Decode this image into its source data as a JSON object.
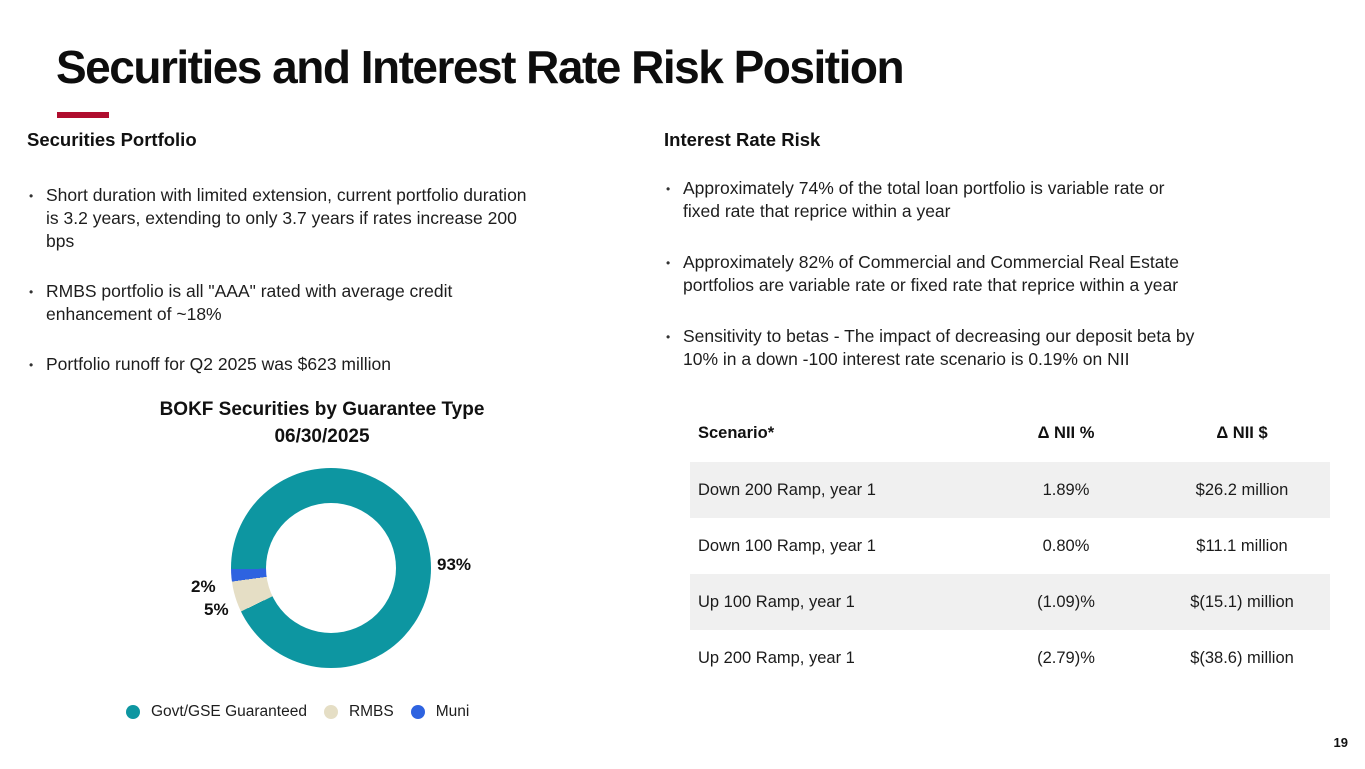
{
  "slide": {
    "title": "Securities and Interest Rate Risk Position",
    "accent_color": "#AF0D2E",
    "page_number": "19"
  },
  "left": {
    "heading": "Securities Portfolio",
    "bullets": [
      [
        "Short duration with limited extension, current portfolio duration",
        "is 3.2 years, extending to only 3.7 years if rates increase 200",
        "bps"
      ],
      [
        "RMBS portfolio is all \"AAA\" rated with average credit",
        "enhancement of  ~18%"
      ],
      [
        "Portfolio runoff for Q2 2025 was $623 million"
      ]
    ]
  },
  "right": {
    "heading": "Interest Rate Risk",
    "bullets": [
      [
        "Approximately 74% of the total loan portfolio is variable rate or",
        "fixed rate that reprice within a year"
      ],
      [
        "Approximately 82% of Commercial and Commercial Real Estate",
        "portfolios are variable rate or fixed rate that reprice within a year"
      ],
      [
        "Sensitivity to betas - The impact of decreasing our deposit beta by",
        "10% in a down -100 interest rate scenario is 0.19% on NII"
      ]
    ]
  },
  "chart": {
    "title_line1": "BOKF Securities by Guarantee Type",
    "title_line2": "06/30/2025",
    "labels": {
      "govt": "93%",
      "rmbs": "5%",
      "muni": "2%"
    },
    "legend": [
      {
        "label": "Govt/GSE Guaranteed",
        "color": "#0D96A1"
      },
      {
        "label": "RMBS",
        "color": "#E5DEC5"
      },
      {
        "label": "Muni",
        "color": "#2E63E0"
      }
    ]
  },
  "chart_data": {
    "type": "pie",
    "subtype": "donut",
    "title": "BOKF Securities by Guarantee Type 06/30/2025",
    "categories": [
      "Govt/GSE Guaranteed",
      "RMBS",
      "Muni"
    ],
    "values": [
      93,
      5,
      2
    ],
    "unit": "%",
    "colors": [
      "#0D96A1",
      "#E5DEC5",
      "#2E63E0"
    ],
    "legend_position": "bottom"
  },
  "table": {
    "headers": [
      "Scenario*",
      "Δ NII %",
      "Δ NII $"
    ],
    "rows": [
      [
        "Down 200 Ramp, year 1",
        "1.89%",
        "$26.2 million"
      ],
      [
        "Down 100 Ramp, year 1",
        "0.80%",
        "$11.1 million"
      ],
      [
        "Up 100 Ramp, year 1",
        "(1.09)%",
        "$(15.1) million"
      ],
      [
        "Up 200 Ramp, year 1",
        "(2.79)%",
        "$(38.6) million"
      ]
    ]
  }
}
